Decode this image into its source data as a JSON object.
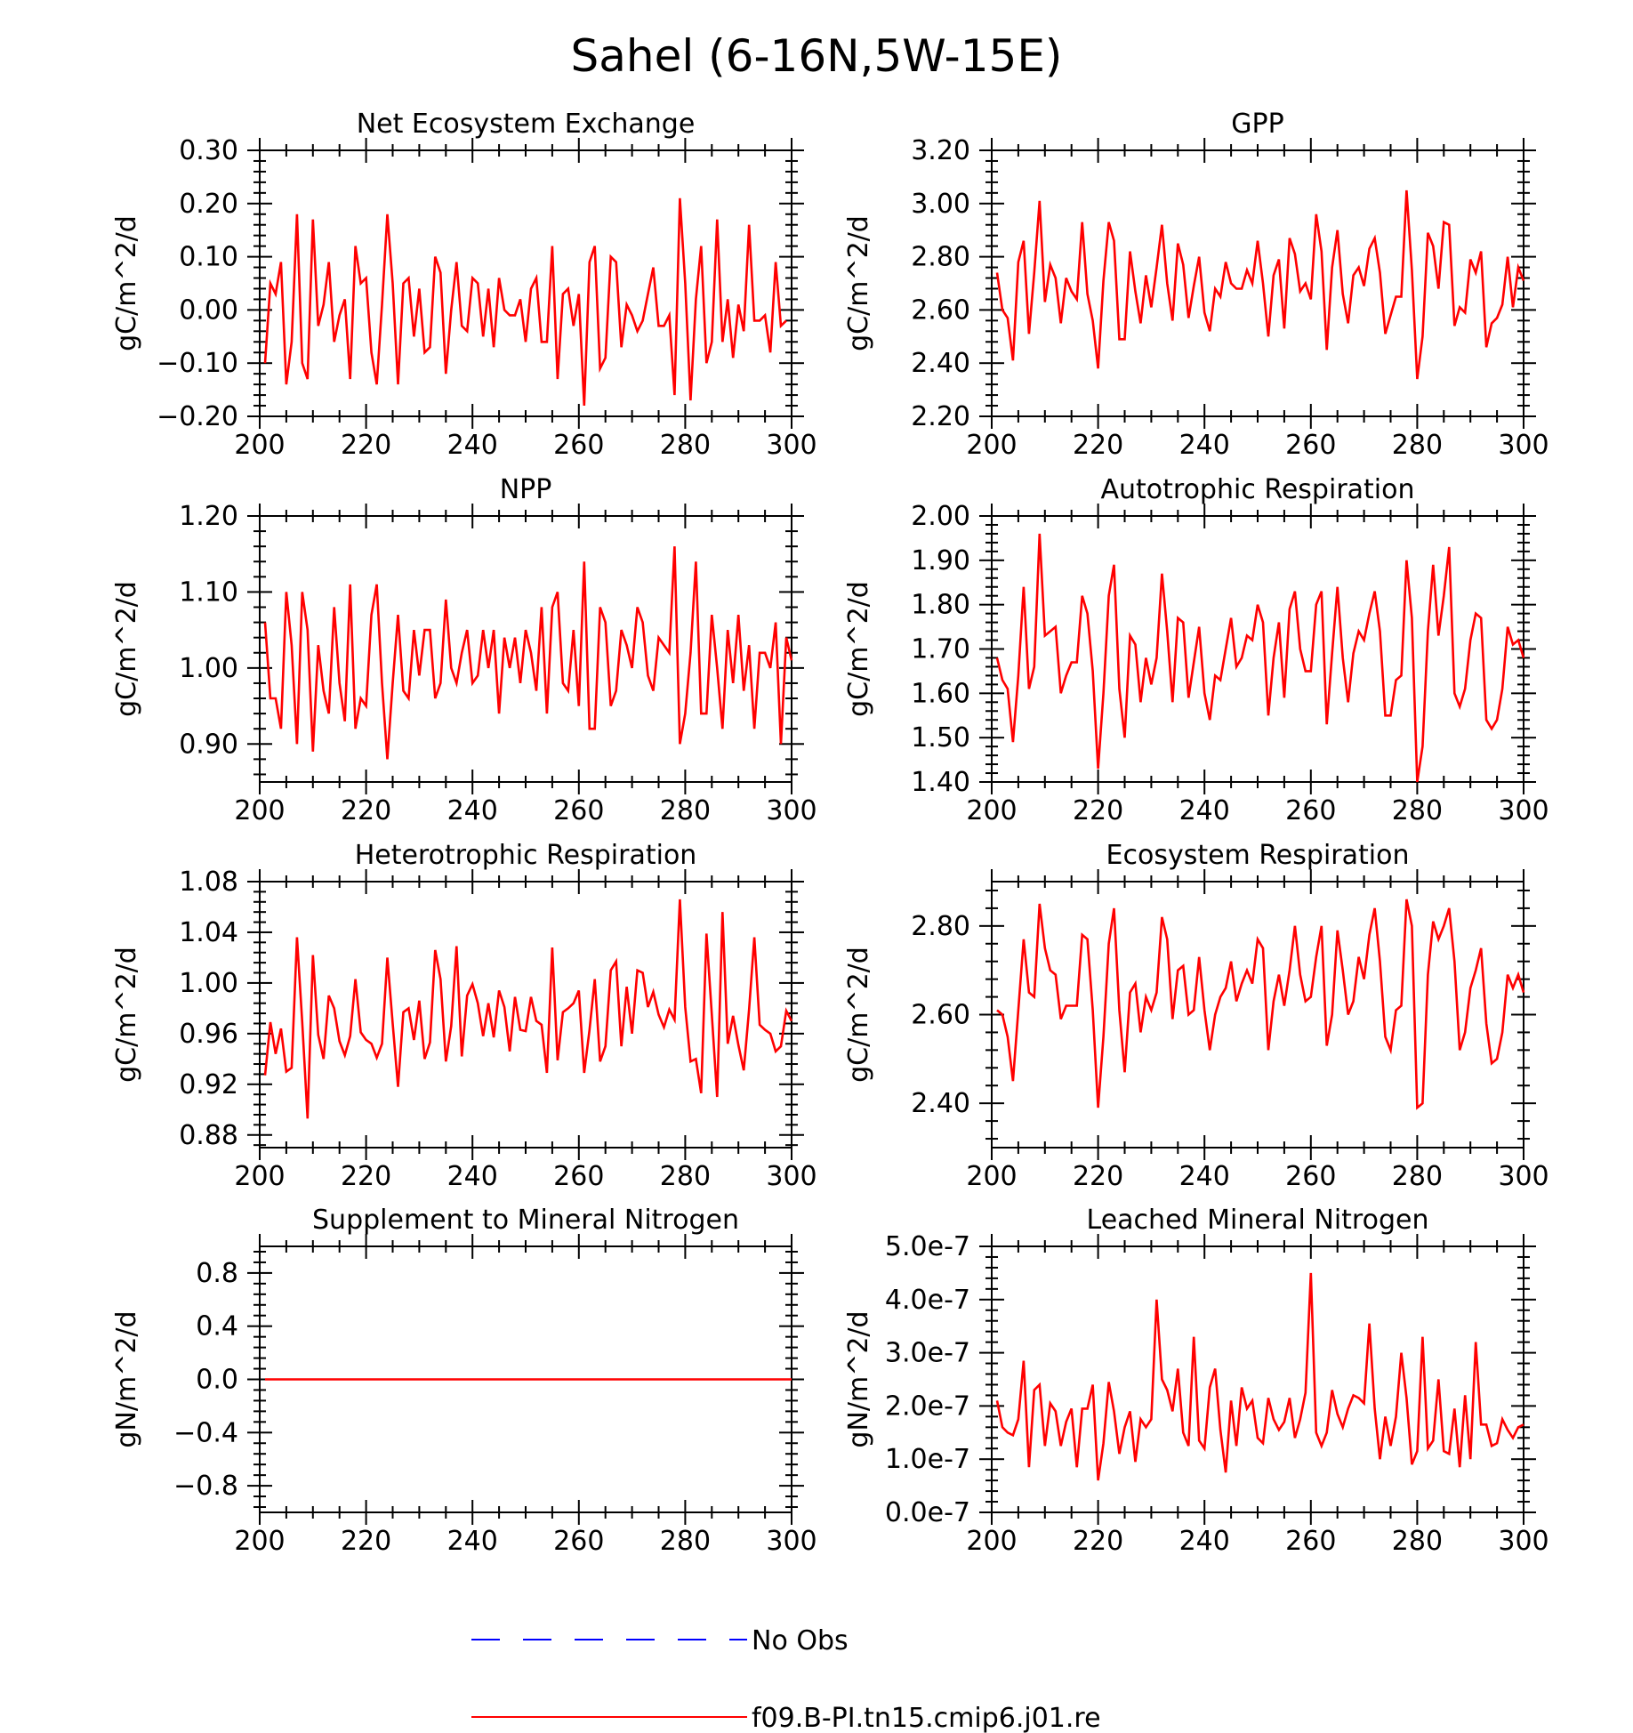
{
  "figure_title": "Sahel (6-16N,5W-15E)",
  "colors": {
    "model": "#ff0000",
    "obs": "#0000ff",
    "axis": "#000000"
  },
  "legend": {
    "items": [
      {
        "label": "No Obs",
        "color": "#0000ff",
        "style": "dashed"
      },
      {
        "label": "f09.B-PI.tn15.cmip6.j01.re",
        "color": "#ff0000",
        "style": "solid"
      }
    ]
  },
  "chart_data": [
    {
      "type": "line",
      "title": "Net Ecosystem Exchange",
      "ylabel": "gC/m^2/d",
      "xlim": [
        200,
        300
      ],
      "ylim": [
        -0.2,
        0.3
      ],
      "xticks": [
        200,
        220,
        240,
        260,
        280,
        300
      ],
      "yticks": [
        -0.2,
        -0.1,
        0.0,
        0.1,
        0.2,
        0.3
      ],
      "yticklabels": [
        "-0.20",
        "-0.10",
        "0.00",
        "0.10",
        "0.20",
        "0.30"
      ],
      "series": [
        {
          "color": "#ff0000",
          "x0": 201,
          "values": [
            -0.1,
            0.05,
            0.03,
            0.09,
            -0.14,
            -0.06,
            0.18,
            -0.1,
            -0.13,
            0.17,
            -0.03,
            0.01,
            0.09,
            -0.06,
            -0.01,
            0.02,
            -0.13,
            0.12,
            0.05,
            0.06,
            -0.08,
            -0.14,
            0.01,
            0.18,
            0.05,
            -0.14,
            0.05,
            0.06,
            -0.05,
            0.04,
            -0.08,
            -0.07,
            0.1,
            0.07,
            -0.12,
            0.0,
            0.09,
            -0.03,
            -0.04,
            0.06,
            0.05,
            -0.05,
            0.04,
            -0.07,
            0.06,
            0.0,
            -0.01,
            -0.01,
            0.02,
            -0.06,
            0.04,
            0.06,
            -0.06,
            -0.06,
            0.12,
            -0.13,
            0.03,
            0.04,
            -0.03,
            0.03,
            -0.18,
            0.09,
            0.12,
            -0.11,
            -0.09,
            0.1,
            0.09,
            -0.07,
            0.01,
            -0.01,
            -0.04,
            -0.02,
            0.03,
            0.08,
            -0.03,
            -0.03,
            -0.01,
            -0.16,
            0.21,
            0.05,
            -0.17,
            0.02,
            0.12,
            -0.1,
            -0.06,
            0.17,
            -0.06,
            0.02,
            -0.09,
            0.01,
            -0.04,
            0.16,
            -0.02,
            -0.02,
            -0.01,
            -0.08,
            0.09,
            -0.03,
            -0.02
          ]
        }
      ]
    },
    {
      "type": "line",
      "title": "GPP",
      "ylabel": "gC/m^2/d",
      "xlim": [
        200,
        300
      ],
      "ylim": [
        2.2,
        3.2
      ],
      "xticks": [
        200,
        220,
        240,
        260,
        280,
        300
      ],
      "yticks": [
        2.2,
        2.4,
        2.6,
        2.8,
        3.0,
        3.2
      ],
      "yticklabels": [
        "2.20",
        "2.40",
        "2.60",
        "2.80",
        "3.00",
        "3.20"
      ],
      "series": [
        {
          "color": "#ff0000",
          "x0": 201,
          "values": [
            2.74,
            2.6,
            2.57,
            2.41,
            2.78,
            2.86,
            2.51,
            2.74,
            3.01,
            2.63,
            2.77,
            2.72,
            2.55,
            2.72,
            2.67,
            2.64,
            2.93,
            2.66,
            2.56,
            2.38,
            2.71,
            2.93,
            2.86,
            2.49,
            2.49,
            2.82,
            2.67,
            2.55,
            2.73,
            2.61,
            2.76,
            2.92,
            2.7,
            2.56,
            2.85,
            2.77,
            2.57,
            2.69,
            2.8,
            2.59,
            2.52,
            2.68,
            2.65,
            2.78,
            2.7,
            2.68,
            2.68,
            2.75,
            2.7,
            2.86,
            2.7,
            2.5,
            2.73,
            2.79,
            2.53,
            2.87,
            2.81,
            2.67,
            2.7,
            2.64,
            2.96,
            2.82,
            2.45,
            2.76,
            2.9,
            2.66,
            2.55,
            2.73,
            2.76,
            2.69,
            2.83,
            2.87,
            2.74,
            2.51,
            2.58,
            2.65,
            2.65,
            3.05,
            2.75,
            2.34,
            2.5,
            2.89,
            2.84,
            2.68,
            2.93,
            2.92,
            2.54,
            2.61,
            2.59,
            2.79,
            2.74,
            2.82,
            2.46,
            2.55,
            2.57,
            2.62,
            2.8,
            2.61,
            2.76,
            2.71
          ]
        }
      ]
    },
    {
      "type": "line",
      "title": "NPP",
      "ylabel": "gC/m^2/d",
      "xlim": [
        200,
        300
      ],
      "ylim": [
        0.85,
        1.2
      ],
      "xticks": [
        200,
        220,
        240,
        260,
        280,
        300
      ],
      "yticks": [
        0.9,
        1.0,
        1.1,
        1.2
      ],
      "yticklabels": [
        "0.90",
        "1.00",
        "1.10",
        "1.20"
      ],
      "series": [
        {
          "color": "#ff0000",
          "x0": 201,
          "values": [
            1.06,
            0.96,
            0.96,
            0.92,
            1.1,
            1.03,
            0.9,
            1.1,
            1.05,
            0.89,
            1.03,
            0.97,
            0.94,
            1.08,
            0.98,
            0.93,
            1.11,
            0.92,
            0.96,
            0.95,
            1.07,
            1.11,
            0.98,
            0.88,
            0.98,
            1.07,
            0.97,
            0.96,
            1.05,
            0.99,
            1.05,
            1.05,
            0.96,
            0.98,
            1.09,
            1.0,
            0.98,
            1.02,
            1.05,
            0.98,
            0.99,
            1.05,
            1.0,
            1.05,
            0.94,
            1.04,
            1.0,
            1.04,
            0.98,
            1.05,
            1.02,
            0.97,
            1.08,
            0.94,
            1.08,
            1.1,
            0.98,
            0.97,
            1.05,
            0.95,
            1.14,
            0.92,
            0.92,
            1.08,
            1.06,
            0.95,
            0.97,
            1.05,
            1.03,
            1.0,
            1.08,
            1.06,
            0.99,
            0.97,
            1.04,
            1.03,
            1.02,
            1.16,
            0.9,
            0.94,
            1.02,
            1.14,
            0.94,
            0.94,
            1.07,
            1.0,
            0.92,
            1.05,
            0.98,
            1.07,
            0.97,
            1.03,
            0.92,
            1.02,
            1.02,
            1.0,
            1.06,
            0.9,
            1.04,
            1.01
          ]
        }
      ]
    },
    {
      "type": "line",
      "title": "Autotrophic Respiration",
      "ylabel": "gC/m^2/d",
      "xlim": [
        200,
        300
      ],
      "ylim": [
        1.4,
        2.0
      ],
      "xticks": [
        200,
        220,
        240,
        260,
        280,
        300
      ],
      "yticks": [
        1.4,
        1.5,
        1.6,
        1.7,
        1.8,
        1.9,
        2.0
      ],
      "yticklabels": [
        "1.40",
        "1.50",
        "1.60",
        "1.70",
        "1.80",
        "1.90",
        "2.00"
      ],
      "series": [
        {
          "color": "#ff0000",
          "x0": 201,
          "values": [
            1.68,
            1.63,
            1.61,
            1.49,
            1.64,
            1.84,
            1.61,
            1.66,
            1.96,
            1.73,
            1.74,
            1.75,
            1.6,
            1.64,
            1.67,
            1.67,
            1.82,
            1.78,
            1.65,
            1.43,
            1.6,
            1.82,
            1.89,
            1.61,
            1.5,
            1.73,
            1.71,
            1.58,
            1.68,
            1.62,
            1.68,
            1.87,
            1.74,
            1.58,
            1.77,
            1.76,
            1.59,
            1.67,
            1.75,
            1.6,
            1.54,
            1.64,
            1.63,
            1.7,
            1.77,
            1.66,
            1.68,
            1.73,
            1.72,
            1.8,
            1.76,
            1.55,
            1.68,
            1.76,
            1.59,
            1.79,
            1.83,
            1.7,
            1.65,
            1.65,
            1.8,
            1.83,
            1.53,
            1.69,
            1.84,
            1.68,
            1.58,
            1.69,
            1.74,
            1.72,
            1.78,
            1.83,
            1.74,
            1.55,
            1.55,
            1.63,
            1.64,
            1.9,
            1.77,
            1.4,
            1.48,
            1.74,
            1.89,
            1.73,
            1.82,
            1.93,
            1.6,
            1.57,
            1.61,
            1.72,
            1.78,
            1.77,
            1.54,
            1.52,
            1.54,
            1.61,
            1.75,
            1.71,
            1.72,
            1.68
          ]
        }
      ]
    },
    {
      "type": "line",
      "title": "Heterotrophic Respiration",
      "ylabel": "gC/m^2/d",
      "xlim": [
        200,
        300
      ],
      "ylim": [
        0.87,
        1.08
      ],
      "xticks": [
        200,
        220,
        240,
        260,
        280,
        300
      ],
      "yticks": [
        0.88,
        0.92,
        0.96,
        1.0,
        1.04,
        1.08
      ],
      "yticklabels": [
        "0.88",
        "0.92",
        "0.96",
        "1.00",
        "1.04",
        "1.08"
      ],
      "series": [
        {
          "color": "#ff0000",
          "x0": 201,
          "values": [
            0.927,
            0.969,
            0.944,
            0.964,
            0.93,
            0.933,
            1.036,
            0.969,
            0.893,
            1.022,
            0.959,
            0.94,
            0.99,
            0.98,
            0.954,
            0.943,
            0.958,
            1.003,
            0.961,
            0.955,
            0.952,
            0.941,
            0.952,
            1.02,
            0.968,
            0.918,
            0.977,
            0.98,
            0.955,
            0.986,
            0.94,
            0.953,
            1.026,
            1.003,
            0.938,
            0.966,
            1.029,
            0.942,
            0.99,
            0.999,
            0.984,
            0.958,
            0.984,
            0.957,
            0.994,
            0.981,
            0.946,
            0.989,
            0.963,
            0.962,
            0.989,
            0.97,
            0.967,
            0.929,
            1.028,
            0.939,
            0.977,
            0.98,
            0.984,
            0.994,
            0.929,
            0.963,
            1.003,
            0.938,
            0.95,
            1.01,
            1.017,
            0.95,
            0.997,
            0.96,
            1.01,
            1.008,
            0.981,
            0.993,
            0.975,
            0.965,
            0.979,
            0.971,
            1.066,
            0.981,
            0.938,
            0.94,
            0.913,
            1.039,
            0.975,
            0.91,
            1.056,
            0.952,
            0.974,
            0.951,
            0.931,
            0.979,
            1.036,
            0.967,
            0.963,
            0.96,
            0.946,
            0.95,
            0.978,
            0.97
          ]
        }
      ]
    },
    {
      "type": "line",
      "title": "Ecosystem Respiration",
      "ylabel": "gC/m^2/d",
      "xlim": [
        200,
        300
      ],
      "ylim": [
        2.3,
        2.9
      ],
      "xticks": [
        200,
        220,
        240,
        260,
        280,
        300
      ],
      "yticks": [
        2.4,
        2.6,
        2.8
      ],
      "yticklabels": [
        "2.40",
        "2.60",
        "2.80"
      ],
      "series": [
        {
          "color": "#ff0000",
          "x0": 201,
          "values": [
            2.61,
            2.6,
            2.55,
            2.45,
            2.61,
            2.77,
            2.65,
            2.64,
            2.85,
            2.75,
            2.7,
            2.69,
            2.59,
            2.62,
            2.62,
            2.62,
            2.78,
            2.77,
            2.61,
            2.39,
            2.55,
            2.76,
            2.84,
            2.61,
            2.47,
            2.65,
            2.67,
            2.56,
            2.64,
            2.61,
            2.65,
            2.82,
            2.77,
            2.59,
            2.7,
            2.71,
            2.6,
            2.61,
            2.73,
            2.61,
            2.52,
            2.6,
            2.64,
            2.66,
            2.72,
            2.63,
            2.67,
            2.7,
            2.67,
            2.77,
            2.75,
            2.52,
            2.63,
            2.69,
            2.62,
            2.7,
            2.8,
            2.69,
            2.63,
            2.64,
            2.73,
            2.8,
            2.53,
            2.6,
            2.79,
            2.7,
            2.6,
            2.63,
            2.73,
            2.68,
            2.78,
            2.84,
            2.72,
            2.55,
            2.52,
            2.61,
            2.62,
            2.86,
            2.8,
            2.39,
            2.4,
            2.69,
            2.81,
            2.77,
            2.8,
            2.84,
            2.72,
            2.52,
            2.56,
            2.66,
            2.7,
            2.75,
            2.58,
            2.49,
            2.5,
            2.56,
            2.69,
            2.66,
            2.69,
            2.65
          ]
        }
      ]
    },
    {
      "type": "line",
      "title": "Supplement to Mineral Nitrogen",
      "ylabel": "gN/m^2/d",
      "xlim": [
        200,
        300
      ],
      "ylim": [
        -1.0,
        1.0
      ],
      "xticks": [
        200,
        220,
        240,
        260,
        280,
        300
      ],
      "yticks": [
        -0.8,
        -0.4,
        0.0,
        0.4,
        0.8
      ],
      "yticklabels": [
        "-0.8",
        "-0.4",
        "0.0",
        "0.4",
        "0.8"
      ],
      "series": [
        {
          "color": "#ff0000",
          "x0": 201,
          "values": [
            0,
            0,
            0,
            0,
            0,
            0,
            0,
            0,
            0,
            0,
            0,
            0,
            0,
            0,
            0,
            0,
            0,
            0,
            0,
            0,
            0,
            0,
            0,
            0,
            0,
            0,
            0,
            0,
            0,
            0,
            0,
            0,
            0,
            0,
            0,
            0,
            0,
            0,
            0,
            0,
            0,
            0,
            0,
            0,
            0,
            0,
            0,
            0,
            0,
            0,
            0,
            0,
            0,
            0,
            0,
            0,
            0,
            0,
            0,
            0,
            0,
            0,
            0,
            0,
            0,
            0,
            0,
            0,
            0,
            0,
            0,
            0,
            0,
            0,
            0,
            0,
            0,
            0,
            0,
            0,
            0,
            0,
            0,
            0,
            0,
            0,
            0,
            0,
            0,
            0,
            0,
            0,
            0,
            0,
            0,
            0,
            0,
            0,
            0,
            0
          ]
        }
      ]
    },
    {
      "type": "line",
      "title": "Leached Mineral Nitrogen",
      "ylabel": "gN/m^2/d",
      "xlim": [
        200,
        300
      ],
      "ylim": [
        0.0,
        5.0
      ],
      "value_scale": "1e-7",
      "xticks": [
        200,
        220,
        240,
        260,
        280,
        300
      ],
      "yticks": [
        0.0,
        1.0,
        2.0,
        3.0,
        4.0,
        5.0
      ],
      "yticklabels": [
        "0.0e-7",
        "1.0e-7",
        "2.0e-7",
        "3.0e-7",
        "4.0e-7",
        "5.0e-7"
      ],
      "series": [
        {
          "color": "#ff0000",
          "x0": 201,
          "values": [
            2.1,
            1.6,
            1.5,
            1.45,
            1.75,
            2.85,
            0.85,
            2.3,
            2.4,
            1.25,
            2.05,
            1.9,
            1.25,
            1.7,
            1.95,
            0.85,
            1.95,
            1.95,
            2.4,
            0.6,
            1.3,
            2.45,
            1.9,
            1.1,
            1.6,
            1.9,
            0.95,
            1.75,
            1.6,
            1.75,
            4.0,
            2.5,
            2.3,
            1.9,
            2.7,
            1.5,
            1.25,
            3.3,
            1.35,
            1.2,
            2.35,
            2.7,
            1.55,
            0.75,
            2.1,
            1.25,
            2.35,
            1.95,
            2.1,
            1.4,
            1.3,
            2.15,
            1.75,
            1.55,
            1.7,
            2.15,
            1.4,
            1.75,
            2.25,
            4.5,
            1.5,
            1.25,
            1.5,
            2.3,
            1.85,
            1.6,
            1.95,
            2.2,
            2.15,
            2.05,
            3.55,
            1.95,
            1.0,
            1.8,
            1.25,
            1.8,
            3.0,
            2.15,
            0.9,
            1.15,
            3.3,
            1.2,
            1.35,
            2.5,
            1.15,
            1.1,
            1.95,
            0.85,
            2.2,
            1.0,
            3.2,
            1.65,
            1.65,
            1.25,
            1.3,
            1.75,
            1.55,
            1.4,
            1.6,
            1.65
          ]
        }
      ]
    }
  ]
}
